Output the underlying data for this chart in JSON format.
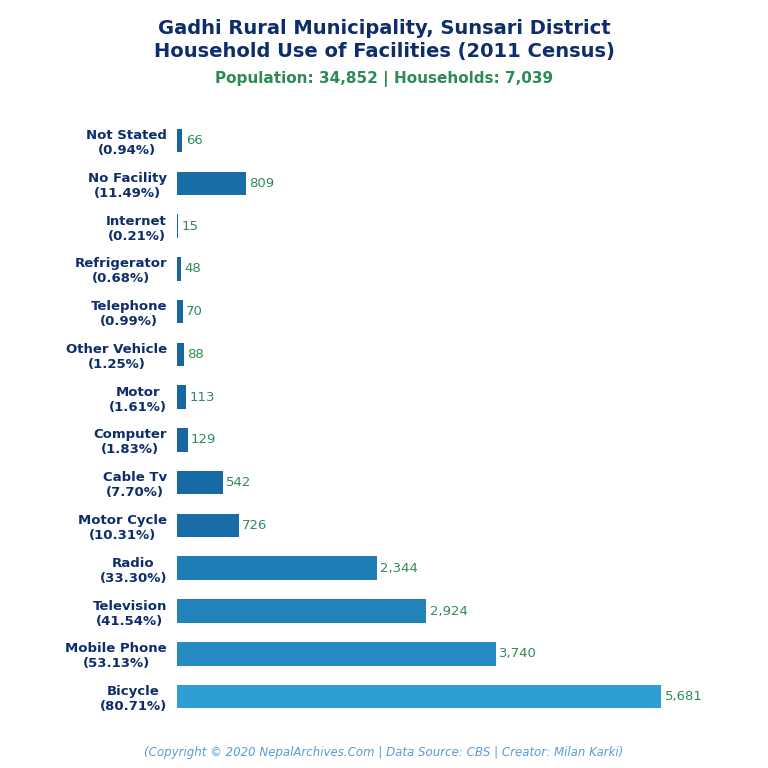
{
  "title_line1": "Gadhi Rural Municipality, Sunsari District",
  "title_line2": "Household Use of Facilities (2011 Census)",
  "subtitle": "Population: 34,852 | Households: 7,039",
  "copyright": "(Copyright © 2020 NepalArchives.Com | Data Source: CBS | Creator: Milan Karki)",
  "categories": [
    "Not Stated\n(0.94%)",
    "No Facility\n(11.49%)",
    "Internet\n(0.21%)",
    "Refrigerator\n(0.68%)",
    "Telephone\n(0.99%)",
    "Other Vehicle\n(1.25%)",
    "Motor\n(1.61%)",
    "Computer\n(1.83%)",
    "Cable Tv\n(7.70%)",
    "Motor Cycle\n(10.31%)",
    "Radio\n(33.30%)",
    "Television\n(41.54%)",
    "Mobile Phone\n(53.13%)",
    "Bicycle\n(80.71%)"
  ],
  "values": [
    66,
    809,
    15,
    48,
    70,
    88,
    113,
    129,
    542,
    726,
    2344,
    2924,
    3740,
    5681
  ],
  "value_labels": [
    "66",
    "809",
    "15",
    "48",
    "70",
    "88",
    "113",
    "129",
    "542",
    "726",
    "2,344",
    "2,924",
    "3,740",
    "5,681"
  ],
  "bar_color_dark": "#1565a0",
  "bar_color_light": "#2e9fd4",
  "title_color": "#0d2d6b",
  "subtitle_color": "#2e8b57",
  "value_color": "#2e8b57",
  "copyright_color": "#5b9bd5",
  "background_color": "#ffffff",
  "xlim": [
    0,
    6300
  ],
  "title_fontsize": 14,
  "subtitle_fontsize": 11,
  "label_fontsize": 9.5,
  "value_fontsize": 9.5,
  "copyright_fontsize": 8.5
}
